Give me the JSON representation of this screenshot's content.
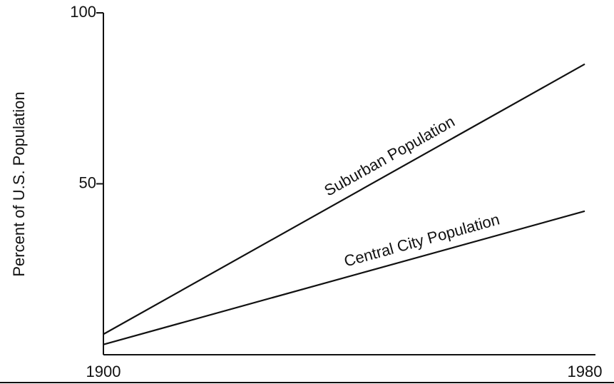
{
  "chart_data": {
    "type": "line",
    "y_label": "Percent of U.S. Population",
    "x": [
      1900,
      1980
    ],
    "series": [
      {
        "name": "Suburban Population",
        "color": "#111111",
        "values": [
          6,
          85
        ]
      },
      {
        "name": "Central City Population",
        "color": "#111111",
        "values": [
          3,
          42
        ]
      }
    ],
    "xlim": [
      1900,
      1980
    ],
    "xticks": [
      1900,
      1980
    ],
    "ylim": [
      0,
      100
    ],
    "yticks": [
      50,
      100
    ]
  }
}
